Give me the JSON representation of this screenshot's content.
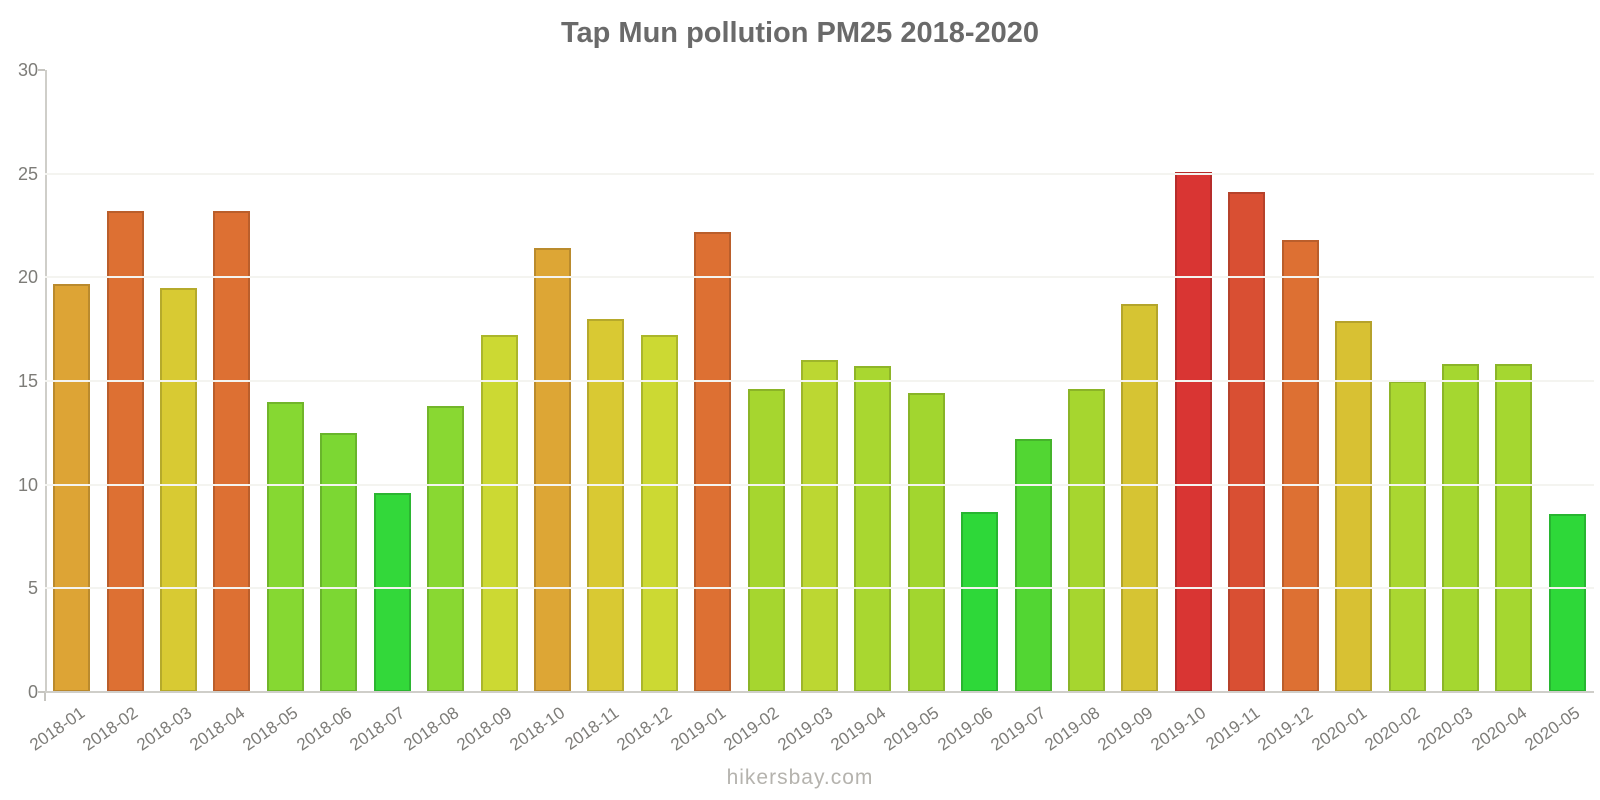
{
  "title": "Tap Mun pollution PM25 2018-2020",
  "watermark": "hikersbay.com",
  "chart_data": {
    "type": "bar",
    "title": "Tap Mun pollution PM25 2018-2020",
    "xlabel": "",
    "ylabel": "",
    "ylim": [
      0,
      30
    ],
    "yticks": [
      0,
      5,
      10,
      15,
      20,
      25,
      30
    ],
    "grid": true,
    "legend": "none",
    "categories": [
      "2018-01",
      "2018-02",
      "2018-03",
      "2018-04",
      "2018-05",
      "2018-06",
      "2018-07",
      "2018-08",
      "2018-09",
      "2018-10",
      "2018-11",
      "2018-12",
      "2019-01",
      "2019-02",
      "2019-03",
      "2019-04",
      "2019-05",
      "2019-06",
      "2019-07",
      "2019-08",
      "2019-09",
      "2019-10",
      "2019-11",
      "2019-12",
      "2020-01",
      "2020-02",
      "2020-03",
      "2020-04",
      "2020-05"
    ],
    "values": [
      19.7,
      23.2,
      19.5,
      23.2,
      14.0,
      12.5,
      9.6,
      13.8,
      17.2,
      21.4,
      18.0,
      17.2,
      22.2,
      14.6,
      16.0,
      15.7,
      14.4,
      8.7,
      12.2,
      14.6,
      18.7,
      25.1,
      24.1,
      21.8,
      17.9,
      15.0,
      15.8,
      15.8,
      8.6
    ],
    "bar_colors": [
      "#dda435",
      "#dd7033",
      "#d8ca33",
      "#dd7033",
      "#86d832",
      "#7cd733",
      "#33d83a",
      "#89d832",
      "#ccd933",
      "#dda635",
      "#d9c933",
      "#ccd933",
      "#dd7033",
      "#a6d62f",
      "#bcd732",
      "#a9d730",
      "#a2d62f",
      "#2ed839",
      "#52d633",
      "#a6d62f",
      "#d6c433",
      "#d93533",
      "#d94f33",
      "#dd7033",
      "#d8c133",
      "#aad731",
      "#a5d730",
      "#a5d730",
      "#2ed839"
    ]
  },
  "colors": {
    "title_text": "#6a6a6a",
    "axis_line": "#cfcec9",
    "gridline": "#f4f4f0",
    "tick_label": "#7d7c78",
    "watermark_text": "#b5b3ae"
  }
}
